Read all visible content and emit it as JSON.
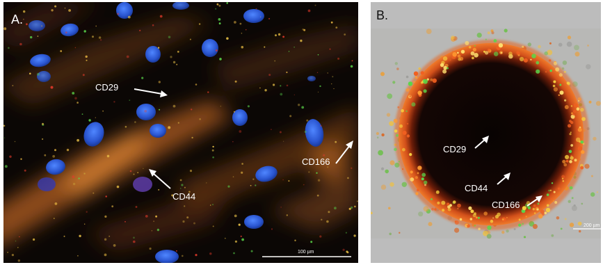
{
  "panel_a": {
    "letter": "A.",
    "labels": {
      "cd29": "CD29",
      "cd44": "CD44",
      "cd166": "CD166"
    },
    "scale_bar": "100 µm"
  },
  "panel_b": {
    "letter": "B.",
    "labels": {
      "cd29": "CD29",
      "cd44": "CD44",
      "cd166": "CD166"
    },
    "scale_bar": "200 µm"
  },
  "colors": {
    "nuclei": "#2f5fd6",
    "cytoplasm": "#d27a2a",
    "cd29_marker": "#5bd64a",
    "cd44_marker": "#e23a2a",
    "cd166_marker": "#f0c84a",
    "panel_b_background": "#bdbdbd",
    "spheroid_rim": "#e05a18"
  }
}
